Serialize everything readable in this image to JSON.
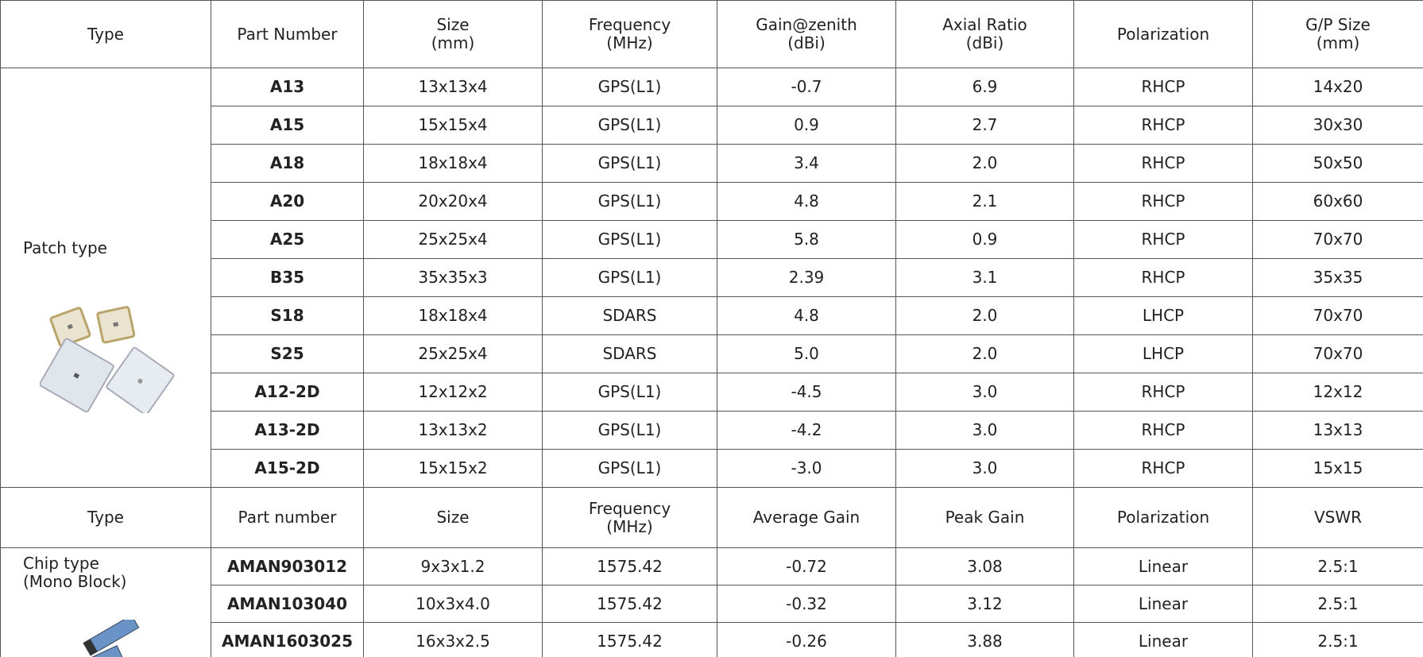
{
  "table1": {
    "header": [
      "Type",
      "Part Number",
      "Size\n(mm)",
      "Frequency\n(MHz)",
      "Gain@zenith\n(dBi)",
      "Axial Ratio\n(dBi)",
      "Polarization",
      "G/P Size\n(mm)"
    ],
    "type": "Patch type",
    "rows": [
      [
        "A13",
        "13x13x4",
        "GPS(L1)",
        "-0.7",
        "6.9",
        "RHCP",
        "14x20"
      ],
      [
        "A15",
        "15x15x4",
        "GPS(L1)",
        "0.9",
        "2.7",
        "RHCP",
        "30x30"
      ],
      [
        "A18",
        "18x18x4",
        "GPS(L1)",
        "3.4",
        "2.0",
        "RHCP",
        "50x50"
      ],
      [
        "A20",
        "20x20x4",
        "GPS(L1)",
        "4.8",
        "2.1",
        "RHCP",
        "60x60"
      ],
      [
        "A25",
        "25x25x4",
        "GPS(L1)",
        "5.8",
        "0.9",
        "RHCP",
        "70x70"
      ],
      [
        "B35",
        "35x35x3",
        "GPS(L1)",
        "2.39",
        "3.1",
        "RHCP",
        "35x35"
      ],
      [
        "S18",
        "18x18x4",
        "SDARS",
        "4.8",
        "2.0",
        "LHCP",
        "70x70"
      ],
      [
        "S25",
        "25x25x4",
        "SDARS",
        "5.0",
        "2.0",
        "LHCP",
        "70x70"
      ],
      [
        "A12-2D",
        "12x12x2",
        "GPS(L1)",
        "-4.5",
        "3.0",
        "RHCP",
        "12x12"
      ],
      [
        "A13-2D",
        "13x13x2",
        "GPS(L1)",
        "-4.2",
        "3.0",
        "RHCP",
        "13x13"
      ],
      [
        "A15-2D",
        "15x15x2",
        "GPS(L1)",
        "-3.0",
        "3.0",
        "RHCP",
        "15x15"
      ]
    ]
  },
  "table2": {
    "header": [
      "Type",
      "Part number",
      "Size",
      "Frequency\n(MHz)",
      "Average Gain",
      "Peak Gain",
      "Polarization",
      "VSWR"
    ],
    "type": "Chip type\n(Mono Block)",
    "rows": [
      [
        "AMAN903012",
        "9x3x1.2",
        "1575.42",
        "-0.72",
        "3.08",
        "Linear",
        "2.5:1"
      ],
      [
        "AMAN103040",
        "10x3x4.0",
        "1575.42",
        "-0.32",
        "3.12",
        "Linear",
        "2.5:1"
      ],
      [
        "AMAN1603025",
        "16x3x2.5",
        "1575.42",
        "-0.26",
        "3.88",
        "Linear",
        "2.5:1"
      ]
    ]
  }
}
